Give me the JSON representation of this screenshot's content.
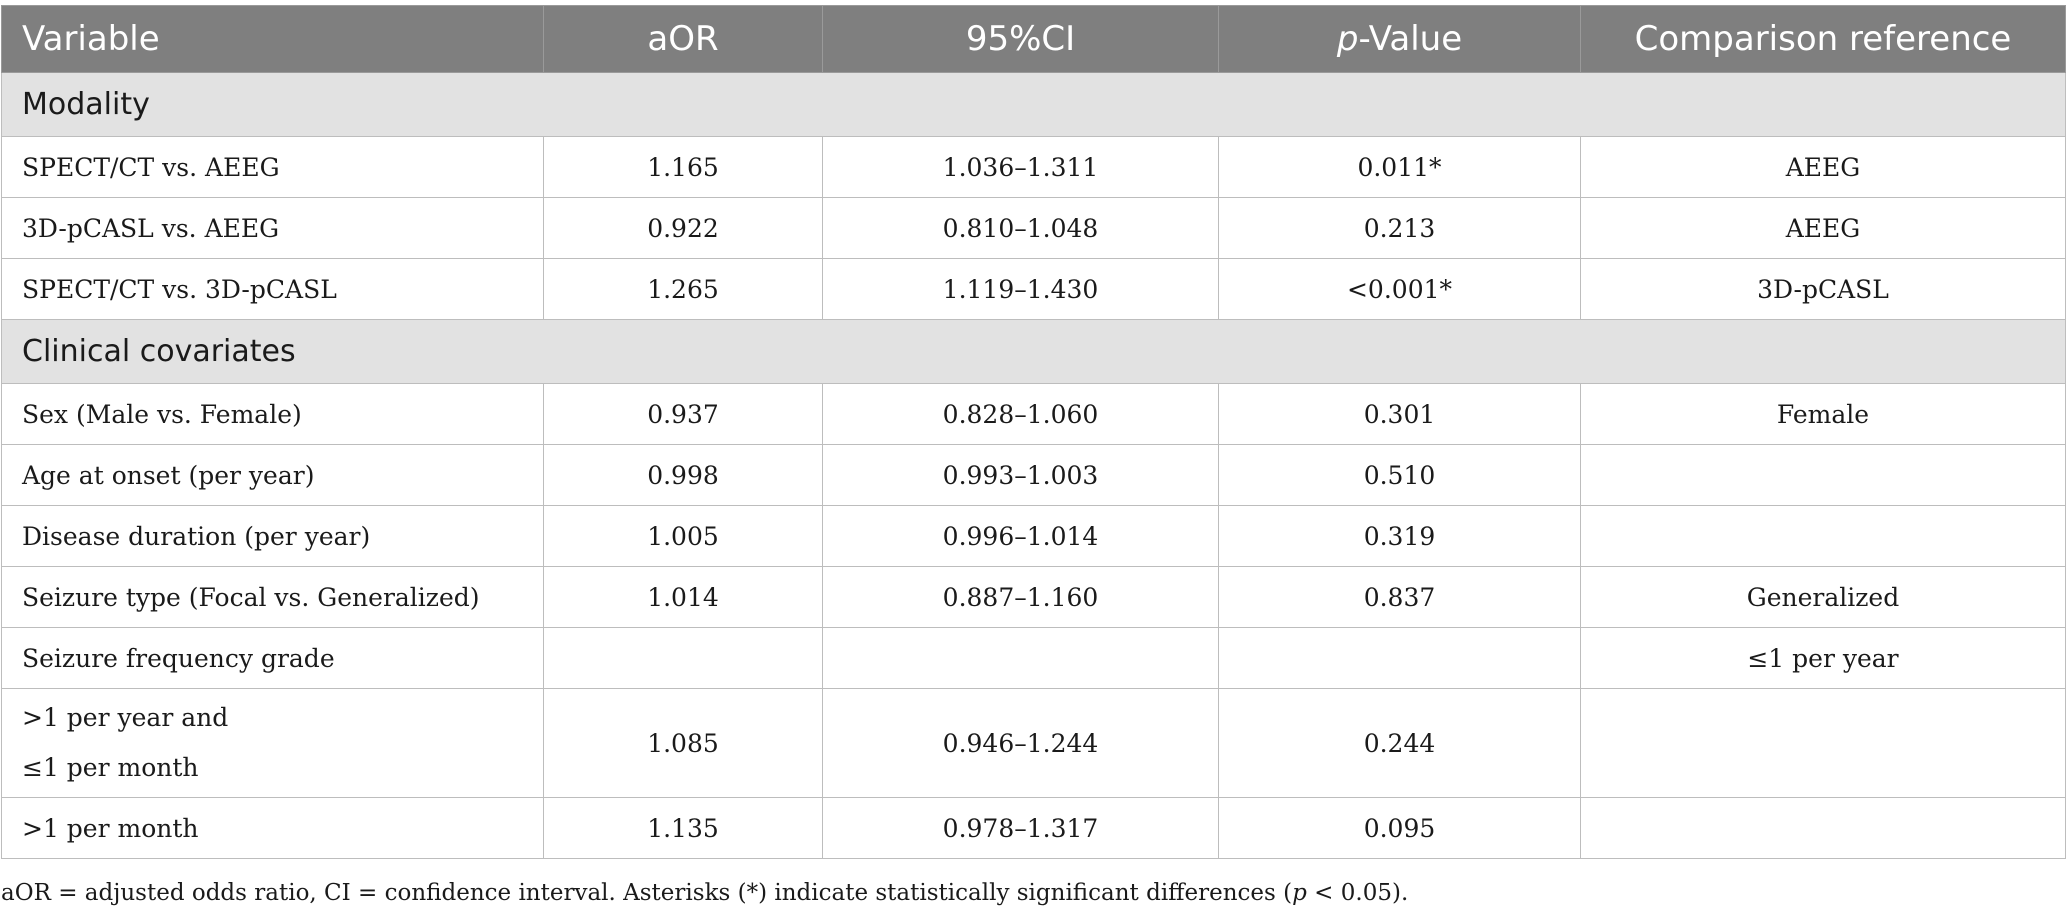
{
  "header": {
    "variable": "Variable",
    "aor": "aOR",
    "ci": "95%CI",
    "p_italic": "p",
    "p_rest": "-Value",
    "reference": "Comparison reference"
  },
  "sections": {
    "modality": "Modality",
    "clinical": "Clinical covariates"
  },
  "rows": [
    {
      "variable": "SPECT/CT vs. AEEG",
      "aor": "1.165",
      "ci": "1.036–1.311",
      "p": "0.011*",
      "ref": "AEEG"
    },
    {
      "variable": "3D-pCASL vs. AEEG",
      "aor": "0.922",
      "ci": "0.810–1.048",
      "p": "0.213",
      "ref": "AEEG"
    },
    {
      "variable": "SPECT/CT vs. 3D-pCASL",
      "aor": "1.265",
      "ci": "1.119–1.430",
      "p": "<0.001*",
      "ref": "3D-pCASL"
    },
    {
      "variable": "Sex (Male vs. Female)",
      "aor": "0.937",
      "ci": "0.828–1.060",
      "p": "0.301",
      "ref": "Female"
    },
    {
      "variable": "Age at onset (per year)",
      "aor": "0.998",
      "ci": "0.993–1.003",
      "p": "0.510",
      "ref": ""
    },
    {
      "variable": "Disease duration (per year)",
      "aor": "1.005",
      "ci": "0.996–1.014",
      "p": "0.319",
      "ref": ""
    },
    {
      "variable": "Seizure type (Focal vs. Generalized)",
      "aor": "1.014",
      "ci": "0.887–1.160",
      "p": "0.837",
      "ref": "Generalized"
    },
    {
      "variable": "Seizure frequency grade",
      "aor": "",
      "ci": "",
      "p": "",
      "ref": "≤1 per year"
    },
    {
      "variable_line1": ">1 per year and",
      "variable_line2": "≤1 per month",
      "aor": "1.085",
      "ci": "0.946–1.244",
      "p": "0.244",
      "ref": ""
    },
    {
      "variable": ">1 per month",
      "aor": "1.135",
      "ci": "0.978–1.317",
      "p": "0.095",
      "ref": ""
    }
  ],
  "footnote": {
    "part1": "aOR = adjusted odds ratio, CI = confidence interval. Asterisks (*) indicate statistically significant differences (",
    "p_italic": "p",
    "part2": " < 0.05)."
  }
}
